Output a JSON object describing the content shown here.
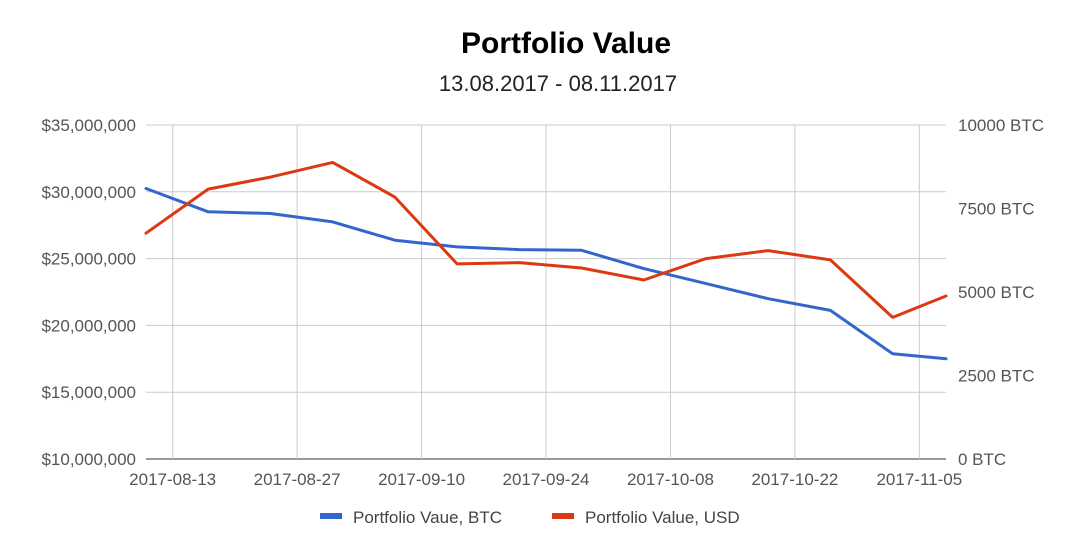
{
  "chart_data": {
    "type": "line",
    "title": "Portfolio Value",
    "subtitle": "13.08.2017 - 08.11.2017",
    "grid": true,
    "legend_position": "bottom",
    "x_ticks": [
      "2017-08-13",
      "2017-08-27",
      "2017-09-10",
      "2017-09-24",
      "2017-10-08",
      "2017-10-22",
      "2017-11-05"
    ],
    "x_range": [
      "2017-08-10",
      "2017-11-08"
    ],
    "y_left": {
      "range": [
        10000000,
        35000000
      ],
      "tick_values": [
        10000000,
        15000000,
        20000000,
        25000000,
        30000000,
        35000000
      ],
      "tick_labels": [
        "$10,000,000",
        "$15,000,000",
        "$20,000,000",
        "$25,000,000",
        "$30,000,000",
        "$35,000,000"
      ]
    },
    "y_right": {
      "range": [
        0,
        10000
      ],
      "tick_values": [
        0,
        2500,
        5000,
        7500,
        10000
      ],
      "tick_labels": [
        "0 BTC",
        "2500 BTC",
        "5000 BTC",
        "7500 BTC",
        "10000 BTC"
      ]
    },
    "series": [
      {
        "name": "Portfolio Vaue, BTC",
        "axis": "right",
        "color": "#3366cc",
        "x": [
          "2017-08-10",
          "2017-08-17",
          "2017-08-24",
          "2017-08-31",
          "2017-09-07",
          "2017-09-14",
          "2017-09-21",
          "2017-09-28",
          "2017-10-05",
          "2017-10-12",
          "2017-10-19",
          "2017-10-26",
          "2017-11-02",
          "2017-11-08"
        ],
        "values": [
          8100,
          7400,
          7350,
          7100,
          6550,
          6350,
          6270,
          6250,
          5700,
          5250,
          4800,
          4450,
          3150,
          3000
        ]
      },
      {
        "name": "Portfolio Value, USD",
        "axis": "left",
        "color": "#dc3912",
        "x": [
          "2017-08-10",
          "2017-08-17",
          "2017-08-24",
          "2017-08-31",
          "2017-09-07",
          "2017-09-14",
          "2017-09-21",
          "2017-09-28",
          "2017-10-05",
          "2017-10-12",
          "2017-10-19",
          "2017-10-26",
          "2017-11-02",
          "2017-11-08"
        ],
        "values": [
          26900000,
          30200000,
          31100000,
          32200000,
          29600000,
          24600000,
          24700000,
          24300000,
          23400000,
          25000000,
          25600000,
          24900000,
          20600000,
          22200000
        ]
      }
    ]
  }
}
